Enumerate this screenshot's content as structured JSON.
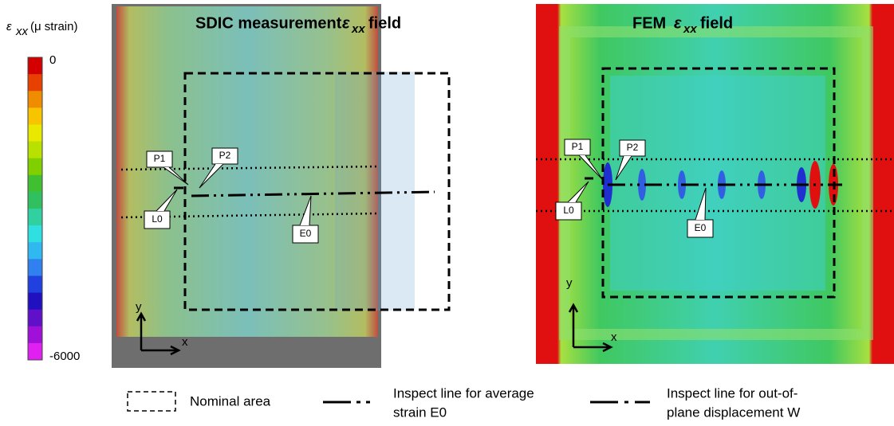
{
  "colorbar": {
    "symbol": "ε",
    "subscript": "xx",
    "unit": "(μ strain)",
    "max": 0,
    "min": -6000,
    "colors": [
      "#d40000",
      "#e84000",
      "#f08c00",
      "#f8c400",
      "#e8e800",
      "#b8e000",
      "#80d000",
      "#40c030",
      "#30c060",
      "#30d0a0",
      "#30e0e0",
      "#30b8f0",
      "#3080f0",
      "#2040e0",
      "#2010c0",
      "#6010c8",
      "#a010d8",
      "#e020f0"
    ]
  },
  "panels": [
    {
      "title_prefix": "SDIC measurement",
      "symbol": "ε",
      "subscript": "xx",
      "title_suffix": "field",
      "labels": {
        "p1": "P1",
        "p2": "P2",
        "l0": "L0",
        "e0": "E0",
        "x": "x",
        "y": "y"
      }
    },
    {
      "title_prefix": "FEM",
      "symbol": "ε",
      "subscript": "xx",
      "title_suffix": "field",
      "labels": {
        "p1": "P1",
        "p2": "P2",
        "l0": "L0",
        "e0": "E0",
        "x": "x",
        "y": "y"
      }
    }
  ],
  "legend": [
    "Nominal area",
    [
      "Inspect line for average",
      "strain E0"
    ],
    [
      "Inspect line for out-of-",
      "plane displacement W"
    ]
  ]
}
